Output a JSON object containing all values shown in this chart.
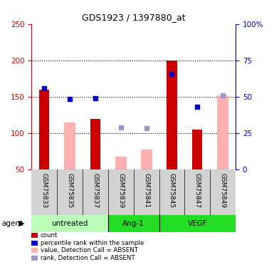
{
  "title": "GDS1923 / 1397880_at",
  "samples": [
    "GSM75833",
    "GSM75835",
    "GSM75837",
    "GSM75839",
    "GSM75841",
    "GSM75845",
    "GSM75847",
    "GSM75849"
  ],
  "ylim_left": [
    50,
    250
  ],
  "ylim_right": [
    0,
    100
  ],
  "yticks_left": [
    50,
    100,
    150,
    200,
    250
  ],
  "yticks_right": [
    0,
    25,
    50,
    75,
    100
  ],
  "yticklabels_right": [
    "0",
    "25",
    "50",
    "75",
    "100%"
  ],
  "red_bars": [
    160,
    null,
    120,
    null,
    null,
    200,
    105,
    null
  ],
  "pink_bars": [
    null,
    115,
    null,
    68,
    78,
    null,
    null,
    152
  ],
  "blue_dots": [
    162,
    147,
    148,
    null,
    null,
    181,
    136,
    null
  ],
  "light_blue_dots": [
    null,
    null,
    null,
    108,
    107,
    null,
    null,
    152
  ],
  "red_color": "#cc0000",
  "pink_color": "#ffb0b0",
  "blue_color": "#0000cc",
  "light_blue_color": "#9999cc",
  "bar_width": 0.4,
  "group_boundaries": [
    {
      "start": 0,
      "end": 2,
      "name": "untreated",
      "color": "#bbffbb"
    },
    {
      "start": 3,
      "end": 4,
      "name": "Ang-1",
      "color": "#22dd22"
    },
    {
      "start": 5,
      "end": 7,
      "name": "VEGF",
      "color": "#22dd22"
    }
  ],
  "legend_items": [
    {
      "label": "count",
      "color": "#cc0000"
    },
    {
      "label": "percentile rank within the sample",
      "color": "#0000cc"
    },
    {
      "label": "value, Detection Call = ABSENT",
      "color": "#ffb0b0"
    },
    {
      "label": "rank, Detection Call = ABSENT",
      "color": "#9999cc"
    }
  ]
}
